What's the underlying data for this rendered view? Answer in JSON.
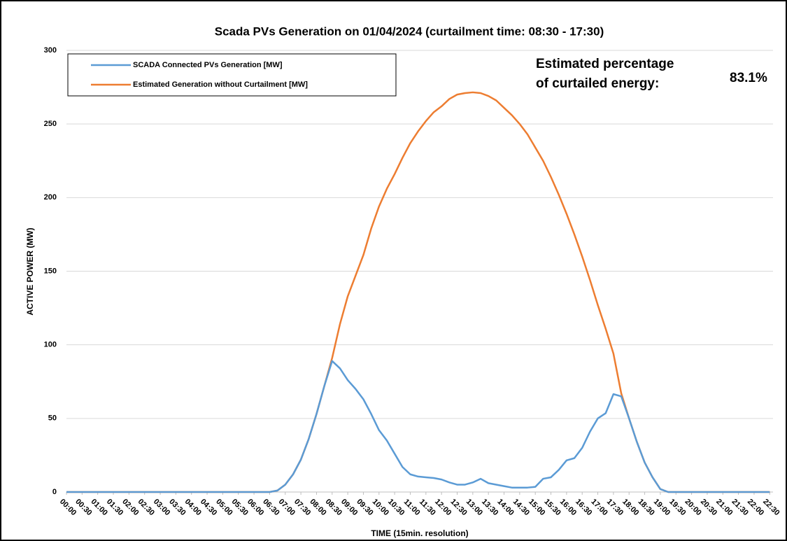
{
  "chart_data": {
    "type": "line",
    "title": "Scada PVs Generation on 01/04/2024 (curtailment time: 08:30 - 17:30)",
    "x_label": "TIME (15min. resolution)",
    "y_label": "ACTIVE POWER (MW)",
    "annotations": [
      "Estimated percentage",
      "of curtailed energy:",
      "83.1%"
    ],
    "categories": [
      "00:00",
      null,
      "00:30",
      null,
      "01:00",
      null,
      "01:30",
      null,
      "02:00",
      null,
      "02:30",
      null,
      "03:00",
      null,
      "03:30",
      null,
      "04:00",
      null,
      "04:30",
      null,
      "05:00",
      null,
      "05:30",
      null,
      "06:00",
      null,
      "06:30",
      null,
      "07:00",
      null,
      "07:30",
      null,
      "08:00",
      null,
      "08:30",
      null,
      "09:00",
      null,
      "09:30",
      null,
      "10:00",
      null,
      "10:30",
      null,
      "11:00",
      null,
      "11:30",
      null,
      "12:00",
      null,
      "12:30",
      null,
      "13:00",
      null,
      "13:30",
      null,
      "14:00",
      null,
      "14:30",
      null,
      "15:00",
      null,
      "15:30",
      null,
      "16:00",
      null,
      "16:30",
      null,
      "17:00",
      null,
      "17:30",
      null,
      "18:00",
      null,
      "18:30",
      null,
      "19:00",
      null,
      "19:30",
      null,
      "20:00",
      null,
      "20:30",
      null,
      "21:00",
      null,
      "21:30",
      null,
      "22:00",
      null,
      "22:30"
    ],
    "series": [
      {
        "name": "SCADA Connected PVs Generation [MW]",
        "color": "#5b9bd5",
        "values": [
          0,
          0,
          0,
          0,
          0,
          0,
          0,
          0,
          0,
          0,
          0,
          0,
          0,
          0,
          0,
          0,
          0,
          0,
          0,
          0,
          0,
          0,
          0,
          0,
          0,
          0,
          0,
          1,
          5,
          12,
          22,
          36,
          53,
          72,
          89,
          84,
          76,
          70,
          63,
          53,
          42,
          35,
          26,
          17,
          12,
          10.5,
          10,
          9.5,
          8.5,
          6.5,
          5,
          5,
          6.5,
          9,
          6,
          5,
          4,
          3,
          3,
          3,
          3.5,
          9,
          10,
          15,
          21.5,
          23,
          30,
          41,
          50,
          53.5,
          66.5,
          65,
          50,
          34,
          20,
          10,
          2,
          0,
          0,
          0,
          0,
          0,
          0,
          0,
          0,
          0,
          0,
          0,
          0,
          0,
          0
        ]
      },
      {
        "name": "Estimated Generation without Curtailment [MW]",
        "color": "#ed7d31",
        "values": [
          0,
          0,
          0,
          0,
          0,
          0,
          0,
          0,
          0,
          0,
          0,
          0,
          0,
          0,
          0,
          0,
          0,
          0,
          0,
          0,
          0,
          0,
          0,
          0,
          0,
          0,
          0,
          1,
          5,
          12,
          22,
          36,
          53,
          72,
          91,
          114,
          133,
          147,
          161,
          179,
          194,
          206,
          216,
          227,
          237,
          245,
          252,
          258,
          262,
          267,
          270,
          271,
          271.5,
          271,
          269,
          266,
          261,
          256,
          250,
          243,
          234,
          225,
          214,
          202,
          189,
          175,
          160,
          144,
          127,
          111,
          94,
          67,
          50,
          34,
          20,
          10,
          2,
          0,
          0,
          0,
          0,
          0,
          0,
          0,
          0,
          0,
          0,
          0,
          0,
          0,
          0
        ]
      }
    ],
    "ylim": [
      0,
      300
    ],
    "yticks": [
      0,
      50,
      100,
      150,
      200,
      250,
      300
    ],
    "grid": true,
    "legend": "upper left"
  }
}
